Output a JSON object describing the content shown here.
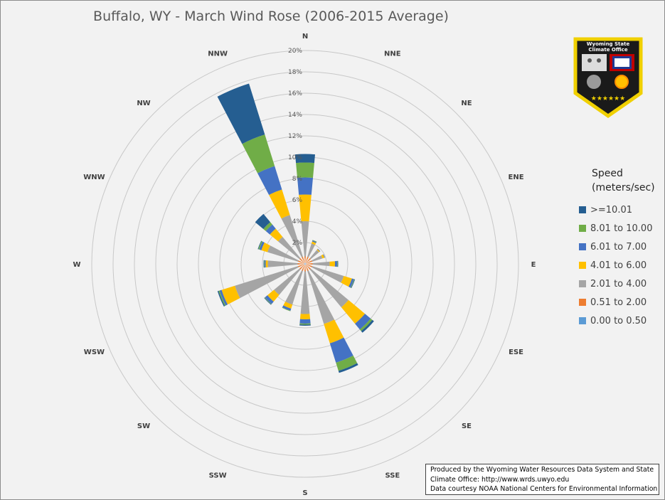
{
  "chart_data": {
    "type": "wind-rose",
    "title": "Buffalo, WY - March Wind Rose (2006-2015 Average)",
    "directions": [
      "N",
      "NNE",
      "NE",
      "ENE",
      "E",
      "ESE",
      "SE",
      "SSE",
      "S",
      "SSW",
      "SW",
      "WSW",
      "W",
      "WNW",
      "NW",
      "NNW"
    ],
    "radial_ticks": [
      "2%",
      "4%",
      "6%",
      "8%",
      "10%",
      "12%",
      "14%",
      "16%",
      "18%",
      "20%"
    ],
    "radial_max": 20,
    "legend": {
      "title": "Speed (meters/sec)",
      "entries": [
        ">=10.01",
        "8.01 to 10.00",
        "6.01 to 7.00",
        "4.01 to 6.00",
        "2.01 to 4.00",
        "0.51 to 2.00",
        "0.00 to 0.50"
      ]
    },
    "series": [
      {
        "name": "0.00 to 0.50",
        "color": "#5b9bd5",
        "values": [
          0.1,
          0.1,
          0.1,
          0.1,
          0.1,
          0.1,
          0.1,
          0.1,
          0.1,
          0.1,
          0.1,
          0.1,
          0.1,
          0.1,
          0.1,
          0.1
        ]
      },
      {
        "name": "0.51 to 2.00",
        "color": "#ed7d31",
        "values": [
          0.6,
          0.6,
          0.6,
          0.6,
          0.6,
          0.6,
          0.6,
          0.6,
          0.6,
          0.6,
          0.6,
          0.6,
          0.6,
          0.6,
          0.6,
          0.6
        ]
      },
      {
        "name": "2.01 to 4.00",
        "color": "#a5a5a5",
        "values": [
          3.3,
          1.3,
          1.0,
          1.0,
          1.6,
          3.1,
          4.6,
          5.2,
          4.0,
          3.3,
          3.1,
          6.2,
          2.8,
          3.0,
          2.6,
          4.1
        ]
      },
      {
        "name": "4.01 to 6.00",
        "color": "#ffc000",
        "values": [
          2.5,
          0.2,
          0.1,
          0.2,
          0.5,
          0.8,
          2.0,
          1.9,
          0.5,
          0.4,
          0.8,
          1.3,
          0.2,
          0.6,
          1.0,
          2.5
        ]
      },
      {
        "name": "6.01 to 7.00",
        "color": "#4472c4",
        "values": [
          1.6,
          0.1,
          0.05,
          0.05,
          0.2,
          0.2,
          0.7,
          1.9,
          0.4,
          0.2,
          0.3,
          0.2,
          0.1,
          0.2,
          0.5,
          2.3
        ]
      },
      {
        "name": "8.01 to 10.00",
        "color": "#70ad47",
        "values": [
          1.4,
          0.05,
          0,
          0,
          0.05,
          0.05,
          0.2,
          0.8,
          0.1,
          0.05,
          0.05,
          0.1,
          0.05,
          0.1,
          0.3,
          3.1
        ]
      },
      {
        "name": ">=10.01",
        "color": "#255e91",
        "values": [
          0.8,
          0,
          0,
          0,
          0.05,
          0.05,
          0.2,
          0.2,
          0.1,
          0,
          0.05,
          0.1,
          0.05,
          0.05,
          1.0,
          5.0
        ]
      }
    ]
  },
  "logo": {
    "lines": [
      "Wyoming State",
      "Climate Office"
    ]
  },
  "credits": {
    "line1": "Produced by the Wyoming Water Resources Data System and State",
    "line2": "Climate Office: http://www.wrds.uwyo.edu",
    "line3": "Data courtesy NOAA National Centers for Environmental Information"
  }
}
